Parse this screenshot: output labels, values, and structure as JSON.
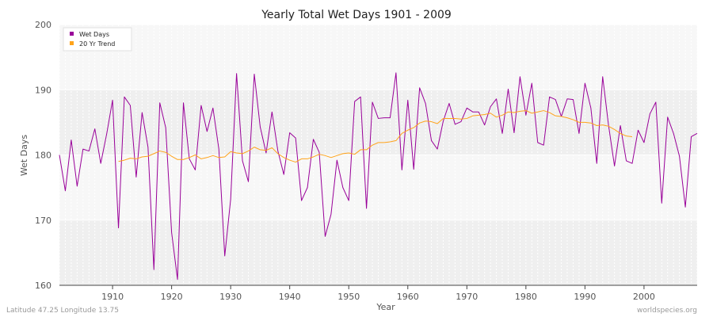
{
  "chart_data": {
    "type": "line",
    "title": "Yearly Total Wet Days 1901 - 2009",
    "xlabel": "Year",
    "ylabel": "Wet Days",
    "xlim": [
      1901,
      2009
    ],
    "ylim": [
      160,
      200
    ],
    "xticks": [
      1910,
      1920,
      1930,
      1940,
      1950,
      1960,
      1970,
      1980,
      1990,
      2000
    ],
    "yticks": [
      160,
      170,
      180,
      190,
      200
    ],
    "legend_position": "top-left",
    "footer_left": "Latitude 47.25 Longitude 13.75",
    "footer_right": "worldspecies.org",
    "colors": {
      "wet_days": "#990099",
      "trend": "#ffa31a",
      "band_dark": "#efefef",
      "band_light": "#f7f7f7"
    },
    "series": [
      {
        "name": "Wet Days",
        "x_start": 1901,
        "values": [
          180.0,
          174.5,
          182.3,
          175.2,
          180.9,
          180.6,
          184.0,
          178.7,
          183.2,
          188.4,
          168.8,
          188.9,
          187.6,
          176.6,
          186.5,
          181.2,
          162.4,
          188.0,
          184.2,
          168.1,
          160.9,
          188.0,
          179.4,
          177.7,
          187.6,
          183.6,
          187.2,
          180.9,
          164.5,
          173.2,
          192.5,
          179.1,
          175.9,
          192.4,
          184.3,
          180.3,
          186.6,
          180.6,
          177.0,
          183.4,
          182.6,
          173.0,
          175.0,
          182.4,
          180.4,
          167.5,
          170.9,
          179.2,
          175.0,
          173.0,
          188.2,
          188.9,
          171.8,
          188.1,
          185.6,
          185.7,
          185.7,
          192.6,
          177.7,
          188.4,
          177.8,
          190.3,
          187.9,
          182.2,
          180.9,
          185.2,
          187.9,
          184.7,
          185.1,
          187.2,
          186.6,
          186.6,
          184.6,
          187.4,
          188.6,
          183.3,
          190.1,
          183.4,
          192.0,
          186.1,
          191.0,
          181.9,
          181.5,
          188.9,
          188.5,
          185.9,
          188.6,
          188.5,
          183.3,
          191.0,
          187.2,
          178.7,
          192.0,
          184.5,
          178.3,
          184.5,
          179.1,
          178.7,
          183.8,
          181.9,
          186.3,
          188.1,
          172.6,
          185.8,
          183.3,
          179.8,
          172.0,
          182.8,
          183.3
        ]
      },
      {
        "name": "20 Yr Trend",
        "x_start": 1911,
        "values": [
          179.0,
          179.2,
          179.5,
          179.4,
          179.7,
          179.8,
          180.2,
          180.6,
          180.4,
          179.8,
          179.3,
          179.3,
          179.6,
          180.0,
          179.4,
          179.6,
          179.9,
          179.6,
          179.7,
          180.5,
          180.3,
          180.2,
          180.6,
          181.2,
          180.8,
          180.7,
          181.1,
          180.2,
          179.6,
          179.2,
          178.9,
          179.4,
          179.4,
          179.7,
          180.1,
          179.9,
          179.6,
          179.9,
          180.2,
          180.3,
          180.1,
          180.8,
          180.8,
          181.5,
          181.9,
          181.9,
          182.0,
          182.2,
          183.3,
          183.8,
          184.2,
          184.9,
          185.2,
          185.1,
          184.8,
          185.6,
          185.6,
          185.6,
          185.5,
          185.6,
          186.0,
          186.1,
          186.2,
          186.4,
          185.8,
          186.1,
          186.6,
          186.5,
          186.7,
          186.8,
          186.4,
          186.6,
          186.8,
          186.5,
          186.0,
          185.9,
          185.7,
          185.4,
          185.0,
          185.0,
          184.9,
          184.5,
          184.6,
          184.4,
          183.9,
          183.3,
          182.9,
          182.8
        ]
      }
    ]
  }
}
